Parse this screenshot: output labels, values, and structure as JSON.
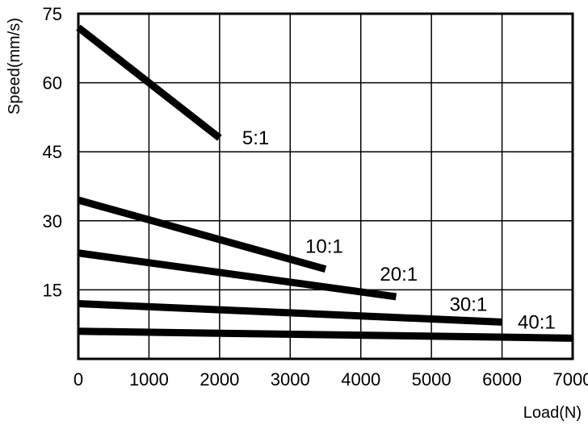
{
  "chart_data": {
    "type": "line",
    "xlabel": "Load(N)",
    "ylabel": "Speed(mm/s)",
    "xlim": [
      0,
      7000
    ],
    "ylim": [
      0,
      75
    ],
    "grid": true,
    "x_ticks": [
      "0",
      "1000",
      "2000",
      "3000",
      "4000",
      "5000",
      "6000",
      "7000"
    ],
    "y_ticks": [
      "15",
      "30",
      "45",
      "60",
      "75"
    ],
    "series": [
      {
        "name": "5:1",
        "x": [
          0,
          2000
        ],
        "y": [
          72,
          48
        ]
      },
      {
        "name": "10:1",
        "x": [
          0,
          3500
        ],
        "y": [
          34.5,
          19.5
        ]
      },
      {
        "name": "20:1",
        "x": [
          0,
          4500
        ],
        "y": [
          23,
          13.5
        ]
      },
      {
        "name": "30:1",
        "x": [
          0,
          6000
        ],
        "y": [
          12,
          8
        ]
      },
      {
        "name": "40:1",
        "x": [
          0,
          7000
        ],
        "y": [
          6,
          4.5
        ]
      }
    ],
    "line_color": "#000000"
  }
}
